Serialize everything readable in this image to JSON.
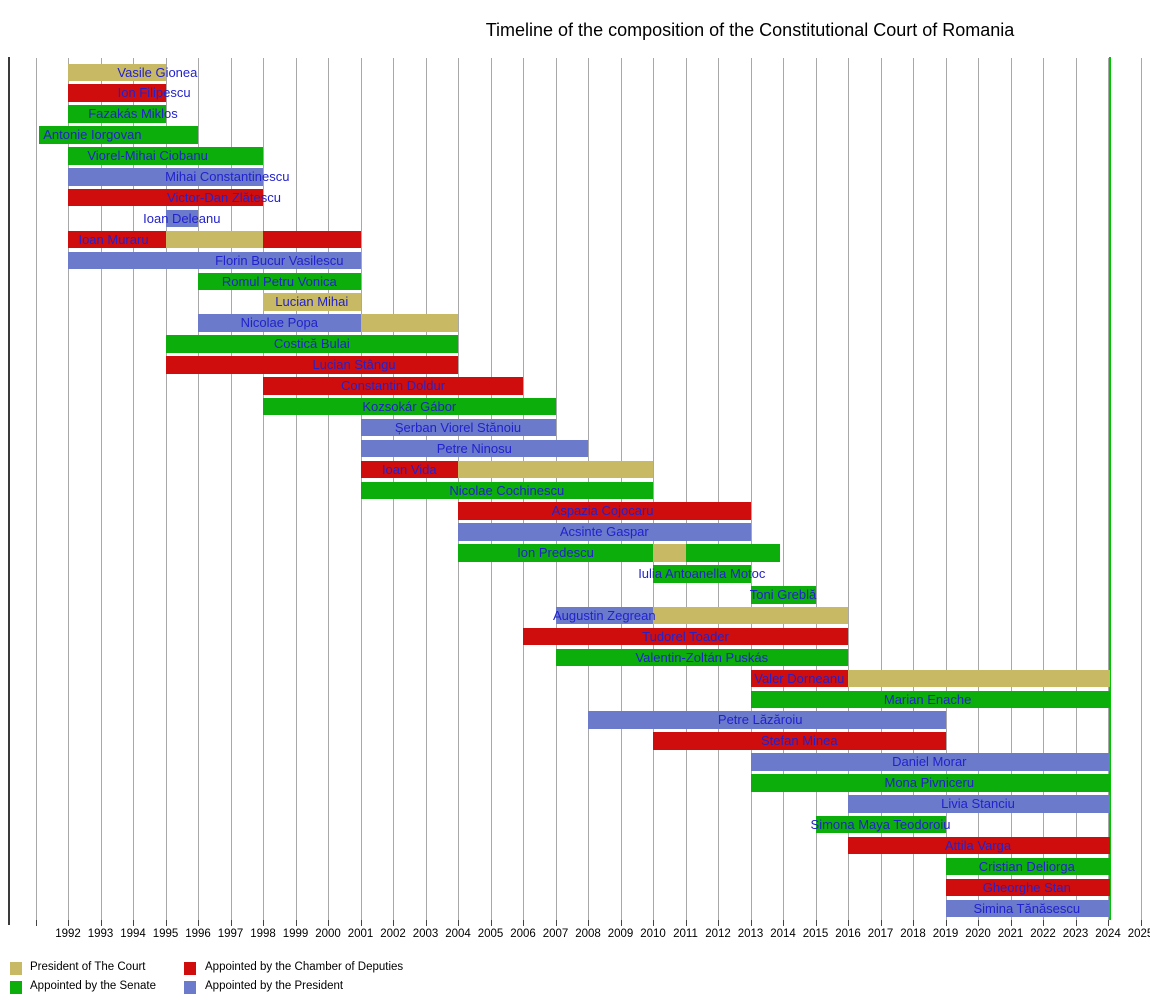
{
  "chart_data": {
    "type": "timeline",
    "title": "Timeline of the composition of the Constitutional Court of Romania",
    "x_axis": {
      "min_year": 1990.2,
      "max_year": 2025.3,
      "gridline_start_year": 1991,
      "gridline_end_year": 2025,
      "tick_labels": [
        "1992",
        "1993",
        "1994",
        "1995",
        "1996",
        "1997",
        "1998",
        "1999",
        "2000",
        "2001",
        "2002",
        "2003",
        "2004",
        "2005",
        "2006",
        "2007",
        "2008",
        "2009",
        "2010",
        "2011",
        "2012",
        "2013",
        "2014",
        "2015",
        "2016",
        "2017",
        "2018",
        "2019",
        "2020",
        "2021",
        "2022",
        "2023",
        "2024",
        "2025"
      ],
      "tick_label_start_year": 1992
    },
    "now_marker": {
      "year": 2024.03,
      "color": "#00c400"
    },
    "colors": {
      "court": "#c8b964",
      "senate": "#0cae0c",
      "chamber": "#d00d0d",
      "president": "#6c7acc",
      "member_label_text": "#2222cc",
      "gridline": "#a8a8a8"
    },
    "legend": [
      {
        "key": "court",
        "label": "President of The Court"
      },
      {
        "key": "senate",
        "label": "Appointed by the Senate"
      },
      {
        "key": "chamber",
        "label": "Appointed by the Chamber of Deputies"
      },
      {
        "key": "president",
        "label": "Appointed by the President"
      }
    ],
    "members": [
      {
        "name": "Vasile Gionea",
        "label_year": 1994.75,
        "segments": [
          [
            1992,
            1995,
            "court"
          ]
        ]
      },
      {
        "name": "Ion Filipescu",
        "label_year": 1994.65,
        "segments": [
          [
            1992,
            1995,
            "chamber"
          ]
        ]
      },
      {
        "name": "Fazakás Miklos",
        "label_year": 1994.0,
        "segments": [
          [
            1992,
            1995,
            "senate"
          ]
        ]
      },
      {
        "name": "Antonie Iorgovan",
        "label_year": 1992.75,
        "segments": [
          [
            1991.1,
            1996,
            "senate"
          ]
        ]
      },
      {
        "name": "Viorel-Mihai Ciobanu",
        "label_year": 1994.45,
        "segments": [
          [
            1992,
            1998,
            "senate"
          ]
        ]
      },
      {
        "name": "Mihai Constantinescu",
        "label_year": 1996.9,
        "segments": [
          [
            1992,
            1998,
            "president"
          ]
        ]
      },
      {
        "name": "Victor-Dan Zlătescu",
        "label_year": 1996.8,
        "segments": [
          [
            1992,
            1998,
            "chamber"
          ]
        ]
      },
      {
        "name": "Ioan Deleanu",
        "label_year": 1995.5,
        "segments": [
          [
            1995,
            1996,
            "president"
          ]
        ]
      },
      {
        "name": "Ioan Muraru",
        "label_year": 1993.4,
        "segments": [
          [
            1992,
            1995,
            "chamber"
          ],
          [
            1995,
            1998,
            "court"
          ],
          [
            1998,
            2001,
            "chamber"
          ]
        ]
      },
      {
        "name": "Florin Bucur Vasilescu",
        "label_year": 1998.5,
        "segments": [
          [
            1992,
            2001,
            "president"
          ]
        ]
      },
      {
        "name": "Romul Petru Vonica",
        "label_year": 1998.5,
        "segments": [
          [
            1996,
            2001,
            "senate"
          ]
        ]
      },
      {
        "name": "Lucian Mihai",
        "label_year": 1999.5,
        "segments": [
          [
            1998,
            2001,
            "court"
          ]
        ]
      },
      {
        "name": "Nicolae Popa",
        "label_year": 1998.5,
        "segments": [
          [
            1996,
            2001,
            "president"
          ],
          [
            2001,
            2004,
            "court"
          ]
        ]
      },
      {
        "name": "Costică Bulai",
        "label_year": 1999.5,
        "segments": [
          [
            1995,
            2004,
            "senate"
          ]
        ]
      },
      {
        "name": "Lucian Stângu",
        "label_year": 2000.8,
        "segments": [
          [
            1995,
            2004,
            "chamber"
          ]
        ]
      },
      {
        "name": "Constantin Doldur",
        "label_year": 2002.0,
        "segments": [
          [
            1998,
            2006,
            "chamber"
          ]
        ]
      },
      {
        "name": "Kozsokár Gábor",
        "label_year": 2002.5,
        "segments": [
          [
            1998,
            2007,
            "senate"
          ]
        ]
      },
      {
        "name": "Șerban Viorel Stănoiu",
        "label_year": 2004.0,
        "segments": [
          [
            2001,
            2007,
            "president"
          ]
        ]
      },
      {
        "name": "Petre Ninosu",
        "label_year": 2004.5,
        "segments": [
          [
            2001,
            2008,
            "president"
          ]
        ]
      },
      {
        "name": "Ioan Vida",
        "label_year": 2002.5,
        "segments": [
          [
            2001,
            2004,
            "chamber"
          ],
          [
            2004,
            2010,
            "court"
          ]
        ]
      },
      {
        "name": "Nicolae Cochinescu",
        "label_year": 2005.5,
        "segments": [
          [
            2001,
            2010,
            "senate"
          ]
        ]
      },
      {
        "name": "Aspazia Cojocaru",
        "label_year": 2008.45,
        "segments": [
          [
            2004,
            2013,
            "chamber"
          ]
        ]
      },
      {
        "name": "Acsinte Gaspar",
        "label_year": 2008.5,
        "segments": [
          [
            2004,
            2013,
            "president"
          ]
        ]
      },
      {
        "name": "Ion Predescu",
        "label_year": 2007.0,
        "segments": [
          [
            2004,
            2010,
            "senate"
          ],
          [
            2010,
            2011,
            "court"
          ],
          [
            2011,
            2013.9,
            "senate"
          ]
        ]
      },
      {
        "name": "Iulia Antoanella Motoc",
        "label_year": 2011.5,
        "segments": [
          [
            2010,
            2013,
            "senate"
          ]
        ]
      },
      {
        "name": "Toni Greblă",
        "label_year": 2014.0,
        "segments": [
          [
            2013,
            2015,
            "senate"
          ]
        ]
      },
      {
        "name": "Augustin Zegrean",
        "label_year": 2008.5,
        "segments": [
          [
            2007,
            2010,
            "president"
          ],
          [
            2010,
            2016,
            "court"
          ]
        ]
      },
      {
        "name": "Tudorel Toader",
        "label_year": 2011.0,
        "segments": [
          [
            2006,
            2016,
            "chamber"
          ]
        ]
      },
      {
        "name": "Valentin-Zoltán Puskás",
        "label_year": 2011.5,
        "segments": [
          [
            2007,
            2016,
            "senate"
          ]
        ]
      },
      {
        "name": "Valer Dorneanu",
        "label_year": 2014.5,
        "segments": [
          [
            2013,
            2016,
            "chamber"
          ],
          [
            2016,
            2024.05,
            "court"
          ]
        ]
      },
      {
        "name": "Marian Enache",
        "label_year": 2018.45,
        "segments": [
          [
            2013,
            2024.05,
            "senate"
          ]
        ]
      },
      {
        "name": "Petre Lăzăroiu",
        "label_year": 2013.3,
        "segments": [
          [
            2008,
            2019,
            "president"
          ]
        ]
      },
      {
        "name": "Stefan Minea",
        "label_year": 2014.5,
        "segments": [
          [
            2010,
            2019,
            "chamber"
          ]
        ]
      },
      {
        "name": "Daniel Morar",
        "label_year": 2018.5,
        "segments": [
          [
            2013,
            2024.05,
            "president"
          ]
        ]
      },
      {
        "name": "Mona Pivniceru",
        "label_year": 2018.5,
        "segments": [
          [
            2013,
            2024.05,
            "senate"
          ]
        ]
      },
      {
        "name": "Livia Stanciu",
        "label_year": 2020.0,
        "segments": [
          [
            2016,
            2024.05,
            "president"
          ]
        ]
      },
      {
        "name": "Simona Maya Teodoroiu",
        "label_year": 2017.0,
        "segments": [
          [
            2015,
            2019,
            "senate"
          ]
        ]
      },
      {
        "name": "Attila Varga",
        "label_year": 2020.0,
        "segments": [
          [
            2016,
            2024.05,
            "chamber"
          ]
        ]
      },
      {
        "name": "Cristian Deliorga",
        "label_year": 2021.5,
        "segments": [
          [
            2019,
            2024.05,
            "senate"
          ]
        ]
      },
      {
        "name": "Gheorghe Stan",
        "label_year": 2021.5,
        "segments": [
          [
            2019,
            2024.05,
            "chamber"
          ]
        ]
      },
      {
        "name": "Simina Tănăsescu",
        "label_year": 2021.5,
        "segments": [
          [
            2019,
            2024.05,
            "president"
          ]
        ]
      }
    ]
  }
}
